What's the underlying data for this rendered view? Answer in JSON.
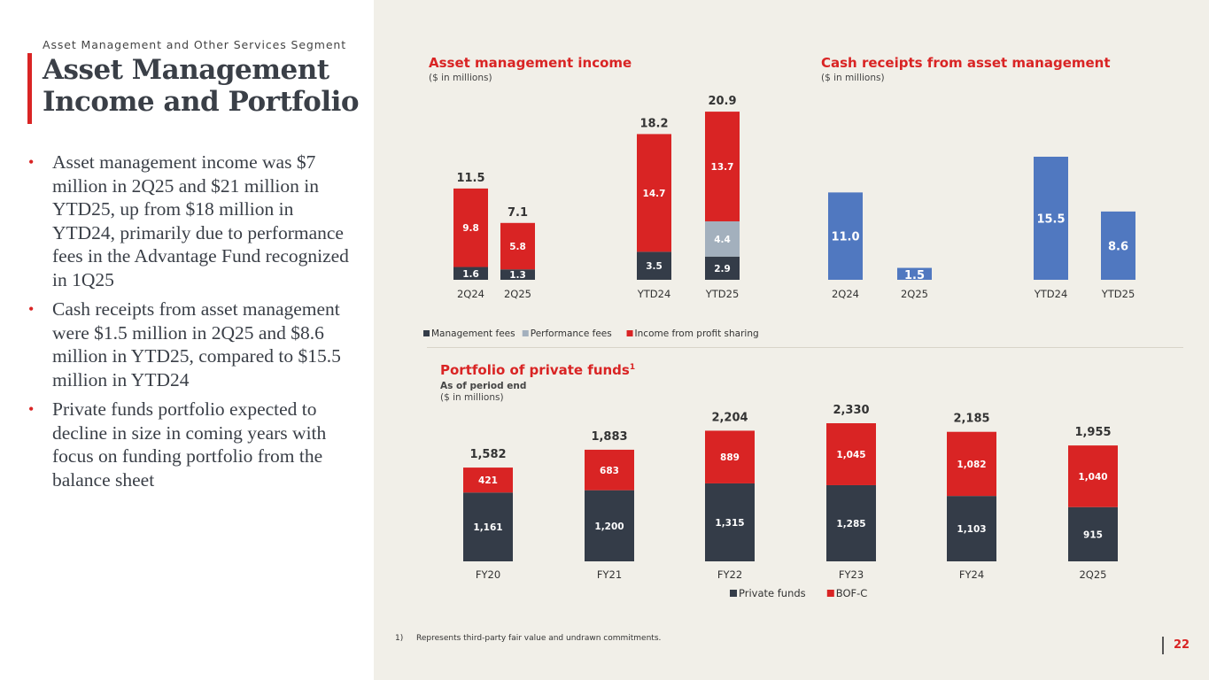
{
  "slide": {
    "section": "Asset Management and Other Services Segment",
    "title_line1": "Asset Management",
    "title_line2": "Income and Portfolio",
    "bullets": [
      "Asset management income was $7 million in 2Q25 and $21 million in YTD25, up from $18 million in YTD24, primarily due to performance fees in the Advantage Fund recognized in 1Q25",
      "Cash receipts from asset management were $1.5 million in 2Q25 and $8.6 million in YTD25, compared to $15.5 million in YTD24",
      "Private funds portfolio expected to decline in size in coming years with focus on funding portfolio from the balance sheet"
    ],
    "footnote_num": "1)",
    "footnote_text": "Represents third-party fair value and undrawn commitments.",
    "page_number": "22"
  },
  "colors": {
    "accent": "#d92424",
    "dark": "#343c48",
    "gray": "#a3b0bd",
    "blue": "#5078c0",
    "background": "#f1efe8"
  },
  "chart_data": [
    {
      "id": "ami",
      "type": "bar",
      "stacked": true,
      "title": "Asset management income",
      "subtitle": "($ in millions)",
      "categories": [
        "2Q24",
        "2Q25",
        "YTD24",
        "YTD25"
      ],
      "series": [
        {
          "name": "Management fees",
          "color": "#343c48",
          "values": [
            1.6,
            1.3,
            3.5,
            2.9
          ]
        },
        {
          "name": "Performance fees",
          "color": "#a3b0bd",
          "values": [
            0,
            0,
            0,
            4.4
          ]
        },
        {
          "name": "Income from profit sharing",
          "color": "#d92424",
          "values": [
            9.8,
            5.8,
            14.7,
            13.7
          ]
        }
      ],
      "totals": [
        "11.5",
        "7.1",
        "18.2",
        "20.9"
      ],
      "ylim": [
        0,
        20.9
      ],
      "legend": "bottom"
    },
    {
      "id": "cash",
      "type": "bar",
      "title": "Cash receipts from asset management",
      "subtitle": "($ in millions)",
      "categories": [
        "2Q24",
        "2Q25",
        "YTD24",
        "YTD25"
      ],
      "values": [
        11.0,
        1.5,
        15.5,
        8.6
      ],
      "labels": [
        "11.0",
        "1.5",
        "15.5",
        "8.6"
      ],
      "color": "#5078c0",
      "ylim": [
        0,
        15.5
      ]
    },
    {
      "id": "pf",
      "type": "bar",
      "stacked": true,
      "title": "Portfolio of private funds",
      "title_sup": "1",
      "subtitle1": "As of period end",
      "subtitle2": "($ in millions)",
      "categories": [
        "FY20",
        "FY21",
        "FY22",
        "FY23",
        "FY24",
        "2Q25"
      ],
      "series": [
        {
          "name": "Private funds",
          "color": "#343c48",
          "values": [
            1161,
            1200,
            1315,
            1285,
            1103,
            915
          ]
        },
        {
          "name": "BOF-C",
          "color": "#d92424",
          "values": [
            421,
            683,
            889,
            1045,
            1082,
            1040
          ]
        }
      ],
      "totals": [
        "1,582",
        "1,883",
        "2,204",
        "2,330",
        "2,185",
        "1,955"
      ],
      "seg_labels": [
        [
          "1,161",
          "1,200",
          "1,315",
          "1,285",
          "1,103",
          "915"
        ],
        [
          "421",
          "683",
          "889",
          "1,045",
          "1,082",
          "1,040"
        ]
      ],
      "ylim": [
        0,
        2330
      ],
      "legend": "bottom"
    }
  ]
}
